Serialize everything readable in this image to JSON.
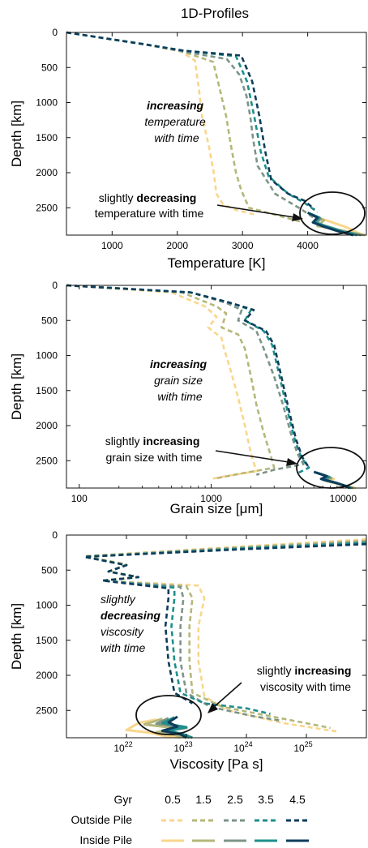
{
  "figure_title": "1D-Profiles",
  "colors": {
    "0.5": "#f9d68c",
    "1.5": "#b5b77a",
    "2.5": "#7d9488",
    "3.5": "#1e8f8a",
    "4.5": "#0d3d5c"
  },
  "legend": {
    "header": "Gyr",
    "labels": [
      "0.5",
      "1.5",
      "2.5",
      "3.5",
      "4.5"
    ],
    "row_outside": "Outside Pile",
    "row_inside": "Inside Pile"
  },
  "chart_data": [
    {
      "type": "line",
      "xlabel": "Temperature [K]",
      "ylabel": "Depth [km]",
      "xscale": "linear",
      "xlim": [
        300,
        4900
      ],
      "ylim": [
        2890,
        0
      ],
      "xticks": [
        1000,
        2000,
        3000,
        4000
      ],
      "xtick_labels": [
        "1000",
        "2000",
        "3000",
        "4000"
      ],
      "yticks": [
        0,
        500,
        1000,
        1500,
        2000,
        2500
      ],
      "ytick_labels": [
        "0",
        "500",
        "1000",
        "1500",
        "2000",
        "2500"
      ],
      "annotations": [
        {
          "bold": "increasing",
          "lines": [
            "temperature",
            "with time"
          ],
          "style": "italic"
        },
        {
          "prefix": "slightly ",
          "bold": "decreasing",
          "lines": [
            "temperature with time"
          ],
          "style": "normal"
        }
      ],
      "series": [
        {
          "group": "outside",
          "gyr": "0.5",
          "x": [
            300,
            1500,
            2050,
            2270,
            2330,
            2380,
            2480,
            2560,
            2600,
            2700,
            2900,
            3200
          ],
          "y": [
            0,
            170,
            270,
            400,
            800,
            1200,
            1600,
            2000,
            2300,
            2450,
            2530,
            2600
          ]
        },
        {
          "group": "outside",
          "gyr": "1.5",
          "x": [
            300,
            1500,
            2070,
            2550,
            2650,
            2750,
            2820,
            2900,
            2980,
            3100,
            3500,
            3900
          ],
          "y": [
            0,
            170,
            270,
            420,
            800,
            1200,
            1600,
            2000,
            2250,
            2500,
            2600,
            2700
          ]
        },
        {
          "group": "outside",
          "gyr": "2.5",
          "x": [
            300,
            1500,
            2080,
            2760,
            2950,
            3060,
            3120,
            3160,
            3230,
            3500,
            3900,
            4100
          ],
          "y": [
            0,
            170,
            270,
            380,
            600,
            900,
            1200,
            1500,
            1900,
            2300,
            2520,
            2650
          ]
        },
        {
          "group": "outside",
          "gyr": "3.5",
          "x": [
            300,
            1500,
            2100,
            2900,
            3070,
            3180,
            3280,
            3400,
            3700,
            3950,
            4150
          ],
          "y": [
            0,
            170,
            260,
            340,
            700,
            1200,
            1700,
            2050,
            2300,
            2430,
            2560
          ]
        },
        {
          "group": "outside",
          "gyr": "4.5",
          "x": [
            300,
            1500,
            2100,
            2980,
            3150,
            3260,
            3350,
            3440,
            3700,
            3950,
            4100
          ],
          "y": [
            0,
            170,
            260,
            330,
            700,
            1200,
            1700,
            2100,
            2300,
            2400,
            2520
          ]
        },
        {
          "group": "inside",
          "gyr": "0.5",
          "x": [
            4100,
            4350,
            4600,
            4750,
            4850
          ],
          "y": [
            2620,
            2700,
            2780,
            2850,
            2890
          ]
        },
        {
          "group": "inside",
          "gyr": "1.5",
          "x": [
            4050,
            4250,
            4150,
            4400,
            4700,
            4880
          ],
          "y": [
            2600,
            2680,
            2760,
            2800,
            2860,
            2890
          ]
        },
        {
          "group": "inside",
          "gyr": "2.5",
          "x": [
            4050,
            4200,
            4120,
            4350,
            4550,
            4820
          ],
          "y": [
            2590,
            2660,
            2720,
            2780,
            2840,
            2890
          ]
        },
        {
          "group": "inside",
          "gyr": "3.5",
          "x": [
            4020,
            4180,
            4100,
            4300,
            4500,
            4760
          ],
          "y": [
            2580,
            2640,
            2700,
            2770,
            2830,
            2890
          ]
        },
        {
          "group": "inside",
          "gyr": "4.5",
          "x": [
            4000,
            4150,
            4080,
            4250,
            4450,
            4700
          ],
          "y": [
            2570,
            2640,
            2710,
            2770,
            2830,
            2890
          ]
        }
      ]
    },
    {
      "type": "line",
      "xlabel": "Grain size [μm]",
      "ylabel": "Depth [km]",
      "xscale": "log",
      "xlim": [
        80,
        15000
      ],
      "ylim": [
        2890,
        0
      ],
      "xticks": [
        100,
        1000,
        10000
      ],
      "xtick_labels": [
        "100",
        "1000",
        "10000"
      ],
      "yticks": [
        0,
        500,
        1000,
        1500,
        2000,
        2500
      ],
      "ytick_labels": [
        "0",
        "500",
        "1000",
        "1500",
        "2000",
        "2500"
      ],
      "annotations": [
        {
          "bold": "increasing",
          "lines": [
            "grain size",
            "with time"
          ],
          "style": "italic"
        },
        {
          "prefix": "slightly ",
          "bold": "increasing",
          "lines": [
            "grain size with time"
          ],
          "style": "normal"
        }
      ],
      "series": [
        {
          "group": "outside",
          "gyr": "0.5",
          "x": [
            80,
            500,
            900,
            1100,
            950,
            1200,
            1250,
            1400,
            1600,
            1800,
            2000,
            2200,
            1300,
            1000
          ],
          "y": [
            0,
            100,
            300,
            450,
            600,
            750,
            900,
            1200,
            1600,
            2000,
            2400,
            2650,
            2720,
            2760
          ]
        },
        {
          "group": "outside",
          "gyr": "1.5",
          "x": [
            80,
            600,
            1100,
            1300,
            1200,
            1600,
            1800,
            2000,
            2200,
            2500,
            2800,
            3000,
            1500,
            1100
          ],
          "y": [
            0,
            100,
            300,
            400,
            600,
            700,
            900,
            1300,
            1700,
            2100,
            2400,
            2600,
            2700,
            2750
          ]
        },
        {
          "group": "outside",
          "gyr": "2.5",
          "x": [
            80,
            700,
            1300,
            1700,
            1600,
            2200,
            2500,
            3000,
            3500,
            4000,
            4500,
            5000,
            3000,
            2200
          ],
          "y": [
            0,
            100,
            250,
            350,
            500,
            650,
            900,
            1300,
            1700,
            2100,
            2400,
            2550,
            2630,
            2700
          ]
        },
        {
          "group": "outside",
          "gyr": "3.5",
          "x": [
            80,
            700,
            1400,
            2000,
            1800,
            2500,
            2900,
            3300,
            3800,
            4300,
            4800,
            5500,
            4500
          ],
          "y": [
            0,
            100,
            250,
            350,
            500,
            650,
            850,
            1300,
            1800,
            2200,
            2450,
            2600,
            2680
          ]
        },
        {
          "group": "outside",
          "gyr": "4.5",
          "x": [
            80,
            700,
            1400,
            2100,
            1800,
            2600,
            3000,
            3400,
            3900,
            4400,
            4900,
            5500
          ],
          "y": [
            0,
            100,
            250,
            350,
            500,
            650,
            850,
            1300,
            1800,
            2200,
            2450,
            2600
          ]
        },
        {
          "group": "inside",
          "gyr": "0.5",
          "x": [
            7000,
            8500,
            7800,
            9500,
            11000,
            12500
          ],
          "y": [
            2700,
            2760,
            2800,
            2840,
            2870,
            2890
          ]
        },
        {
          "group": "inside",
          "gyr": "1.5",
          "x": [
            6800,
            8200,
            7500,
            9200,
            10800,
            12000
          ],
          "y": [
            2690,
            2750,
            2790,
            2830,
            2865,
            2890
          ]
        },
        {
          "group": "inside",
          "gyr": "2.5",
          "x": [
            6500,
            8000,
            7200,
            9000,
            10500,
            11800
          ],
          "y": [
            2680,
            2740,
            2780,
            2820,
            2860,
            2890
          ]
        },
        {
          "group": "inside",
          "gyr": "3.5",
          "x": [
            6300,
            7800,
            7000,
            8800,
            10300,
            11500
          ],
          "y": [
            2670,
            2730,
            2770,
            2815,
            2855,
            2890
          ]
        },
        {
          "group": "inside",
          "gyr": "4.5",
          "x": [
            6000,
            7500,
            6800,
            8600,
            10000,
            11200
          ],
          "y": [
            2660,
            2720,
            2760,
            2810,
            2850,
            2890
          ]
        }
      ]
    },
    {
      "type": "line",
      "xlabel": "Viscosity [Pa s]",
      "ylabel": "Depth [km]",
      "xscale": "log",
      "xlim": [
        21.0,
        26.0
      ],
      "ylim": [
        2890,
        0
      ],
      "xticks": [
        22,
        23,
        24,
        25
      ],
      "xtick_labels": [
        "10",
        "10",
        "10",
        "10"
      ],
      "xtick_exponents": [
        "22",
        "23",
        "24",
        "25"
      ],
      "yticks": [
        0,
        500,
        1000,
        1500,
        2000,
        2500
      ],
      "ytick_labels": [
        "0",
        "500",
        "1000",
        "1500",
        "2000",
        "2500"
      ],
      "annotations": [
        {
          "prefix": "slightly",
          "bold": "decreasing",
          "lines": [
            "viscosity",
            "with time"
          ],
          "style": "italic"
        },
        {
          "prefix": "slightly ",
          "bold": "increasing",
          "lines": [
            "viscosity with time"
          ],
          "style": "normal"
        }
      ],
      "series": [
        {
          "group": "outside",
          "gyr": "0.5",
          "x": [
            26.0,
            24.0,
            21.3,
            22.0,
            21.7,
            22.2,
            21.6,
            23.2,
            23.3,
            23.2,
            23.2,
            23.3,
            23.7,
            24.6,
            25.5
          ],
          "y": [
            60,
            160,
            300,
            420,
            520,
            600,
            650,
            720,
            900,
            1300,
            1800,
            2300,
            2500,
            2680,
            2800
          ]
        },
        {
          "group": "outside",
          "gyr": "1.5",
          "x": [
            26.0,
            24.0,
            21.3,
            22.0,
            21.7,
            22.2,
            21.6,
            23.0,
            23.1,
            23.05,
            23.05,
            23.1,
            23.6,
            24.5,
            25.4
          ],
          "y": [
            80,
            170,
            300,
            420,
            520,
            600,
            650,
            730,
            900,
            1300,
            1800,
            2250,
            2450,
            2600,
            2750
          ]
        },
        {
          "group": "outside",
          "gyr": "2.5",
          "x": [
            26.0,
            24.0,
            21.3,
            22.0,
            21.7,
            22.2,
            21.6,
            22.9,
            22.95,
            22.9,
            22.9,
            23.0,
            23.4,
            24.1,
            24.6
          ],
          "y": [
            100,
            180,
            310,
            430,
            520,
            600,
            650,
            740,
            900,
            1300,
            1800,
            2250,
            2450,
            2580,
            2650
          ]
        },
        {
          "group": "outside",
          "gyr": "3.5",
          "x": [
            26.0,
            24.0,
            21.3,
            22.0,
            21.7,
            22.2,
            21.6,
            22.8,
            22.8,
            22.75,
            22.8,
            22.9,
            23.3,
            24.0,
            24.4
          ],
          "y": [
            110,
            190,
            310,
            430,
            520,
            600,
            650,
            750,
            900,
            1300,
            1800,
            2250,
            2400,
            2470,
            2550
          ]
        },
        {
          "group": "outside",
          "gyr": "4.5",
          "x": [
            26.0,
            24.0,
            21.3,
            22.0,
            21.7,
            22.2,
            21.6,
            22.7,
            22.7,
            22.65,
            22.7,
            22.8,
            23.1
          ],
          "y": [
            130,
            200,
            310,
            430,
            520,
            600,
            650,
            760,
            900,
            1300,
            1800,
            2250,
            2400
          ]
        },
        {
          "group": "inside",
          "gyr": "0.5",
          "x": [
            22.5,
            22.2,
            22.0,
            22.4,
            22.6,
            22.9
          ],
          "y": [
            2630,
            2680,
            2780,
            2820,
            2860,
            2890
          ]
        },
        {
          "group": "inside",
          "gyr": "1.5",
          "x": [
            22.6,
            22.3,
            22.9,
            22.5,
            22.8,
            23.0
          ],
          "y": [
            2620,
            2700,
            2760,
            2810,
            2850,
            2890
          ]
        },
        {
          "group": "inside",
          "gyr": "2.5",
          "x": [
            22.7,
            22.5,
            23.0,
            22.6,
            22.9,
            23.05
          ],
          "y": [
            2610,
            2690,
            2750,
            2800,
            2845,
            2890
          ]
        },
        {
          "group": "inside",
          "gyr": "3.5",
          "x": [
            22.8,
            22.6,
            23.0,
            22.7,
            22.95,
            23.1
          ],
          "y": [
            2600,
            2680,
            2740,
            2790,
            2840,
            2890
          ]
        },
        {
          "group": "inside",
          "gyr": "4.5",
          "x": [
            22.85,
            22.7,
            22.85,
            22.6,
            22.9,
            23.0
          ],
          "y": [
            2590,
            2670,
            2730,
            2790,
            2840,
            2890
          ]
        }
      ]
    }
  ]
}
